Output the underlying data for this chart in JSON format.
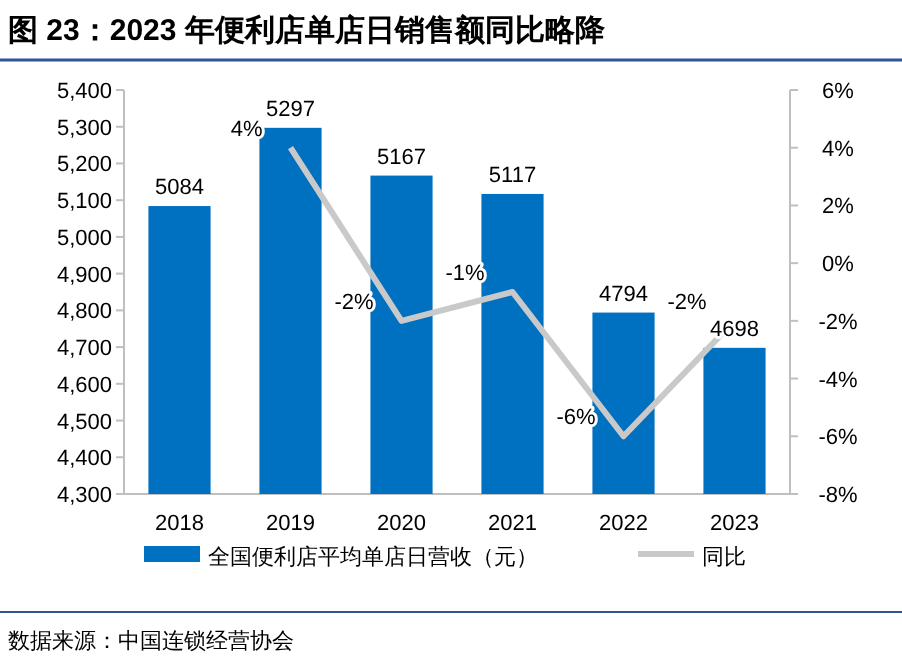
{
  "chart_data": {
    "type": "bar",
    "title": "图 23：2023 年便利店单店日销售额同比略降",
    "categories": [
      "2018",
      "2019",
      "2020",
      "2021",
      "2022",
      "2023"
    ],
    "series": [
      {
        "name": "全国便利店平均单店日营收（元）",
        "color": "#0070c0",
        "values": [
          5084,
          5297,
          5167,
          5117,
          4794,
          4698
        ],
        "value_labels": [
          "5084",
          "5297",
          "5167",
          "5117",
          "4794",
          "4698"
        ]
      },
      {
        "name": "同比",
        "type": "line",
        "axis": "y2",
        "color": "#c9c9c9",
        "marker": "none",
        "values": [
          null,
          4,
          -2,
          -1,
          -6,
          -2
        ],
        "value_labels": [
          null,
          "4%",
          "-2%",
          "-1%",
          "-6%",
          "-2%"
        ]
      }
    ],
    "ylim": [
      4300,
      5400
    ],
    "yticks": [
      {
        "value": 4300,
        "label": "4,300"
      },
      {
        "value": 4400,
        "label": "4,400"
      },
      {
        "value": 4500,
        "label": "4,500"
      },
      {
        "value": 4600,
        "label": "4,600"
      },
      {
        "value": 4700,
        "label": "4,700"
      },
      {
        "value": 4800,
        "label": "4,800"
      },
      {
        "value": 4900,
        "label": "4,900"
      },
      {
        "value": 5000,
        "label": "5,000"
      },
      {
        "value": 5100,
        "label": "5,100"
      },
      {
        "value": 5200,
        "label": "5,200"
      },
      {
        "value": 5300,
        "label": "5,300"
      },
      {
        "value": 5400,
        "label": "5,400"
      }
    ],
    "y2lim": [
      -8,
      6
    ],
    "y2ticks": [
      {
        "value": -8,
        "label": "-8%"
      },
      {
        "value": -6,
        "label": "-6%"
      },
      {
        "value": -4,
        "label": "-4%"
      },
      {
        "value": -2,
        "label": "-2%"
      },
      {
        "value": 0,
        "label": "0%"
      },
      {
        "value": 2,
        "label": "2%"
      },
      {
        "value": 4,
        "label": "4%"
      },
      {
        "value": 6,
        "label": "6%"
      }
    ],
    "grid": false,
    "legend": "bottom",
    "annotations": [
      "数据来源：中国连锁经营协会"
    ]
  }
}
